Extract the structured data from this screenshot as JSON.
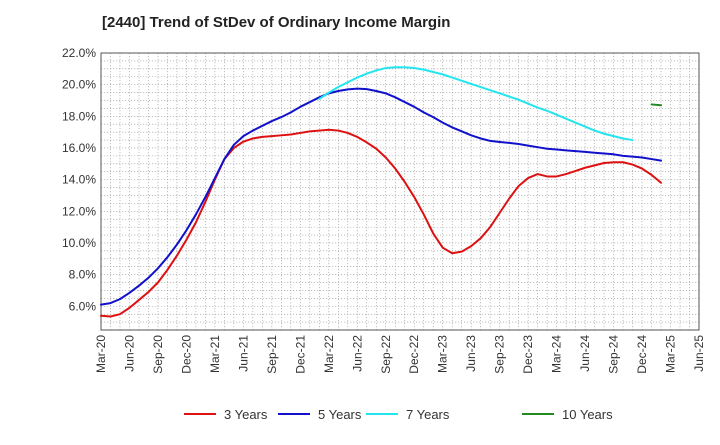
{
  "chart_data": {
    "type": "line",
    "title": "[2440]  Trend of StDev of Ordinary Income Margin",
    "xlabel": "",
    "ylabel": "",
    "ylim": [
      4.5,
      22.0
    ],
    "y_ticks": [
      "22.0%",
      "20.0%",
      "18.0%",
      "16.0%",
      "14.0%",
      "12.0%",
      "10.0%",
      "8.0%",
      "6.0%"
    ],
    "y_tick_values": [
      22,
      20,
      18,
      16,
      14,
      12,
      10,
      8,
      6
    ],
    "x_ticks": [
      "Mar-20",
      "Jun-20",
      "Sep-20",
      "Dec-20",
      "Mar-21",
      "Jun-21",
      "Sep-21",
      "Dec-21",
      "Mar-22",
      "Jun-22",
      "Sep-22",
      "Dec-22",
      "Mar-23",
      "Jun-23",
      "Sep-23",
      "Dec-23",
      "Mar-24",
      "Jun-24",
      "Sep-24",
      "Dec-24",
      "Mar-25",
      "Jun-25"
    ],
    "grid": true,
    "legend_position": "bottom",
    "series": [
      {
        "name": "3 Years",
        "color": "#dd1111",
        "points": [
          [
            "Mar-20",
            5.4
          ],
          [
            "Apr-20",
            5.35
          ],
          [
            "May-20",
            5.5
          ],
          [
            "Jun-20",
            5.9
          ],
          [
            "Jul-20",
            6.4
          ],
          [
            "Aug-20",
            6.9
          ],
          [
            "Sep-20",
            7.5
          ],
          [
            "Oct-20",
            8.3
          ],
          [
            "Nov-20",
            9.2
          ],
          [
            "Dec-20",
            10.2
          ],
          [
            "Jan-21",
            11.3
          ],
          [
            "Feb-21",
            12.6
          ],
          [
            "Mar-21",
            14.0
          ],
          [
            "Apr-21",
            15.3
          ],
          [
            "May-21",
            16.0
          ],
          [
            "Jun-21",
            16.4
          ],
          [
            "Jul-21",
            16.6
          ],
          [
            "Aug-21",
            16.7
          ],
          [
            "Sep-21",
            16.75
          ],
          [
            "Oct-21",
            16.8
          ],
          [
            "Nov-21",
            16.85
          ],
          [
            "Dec-21",
            16.95
          ],
          [
            "Jan-22",
            17.05
          ],
          [
            "Feb-22",
            17.1
          ],
          [
            "Mar-22",
            17.15
          ],
          [
            "Apr-22",
            17.1
          ],
          [
            "May-22",
            16.95
          ],
          [
            "Jun-22",
            16.7
          ],
          [
            "Jul-22",
            16.35
          ],
          [
            "Aug-22",
            15.95
          ],
          [
            "Sep-22",
            15.4
          ],
          [
            "Oct-22",
            14.7
          ],
          [
            "Nov-22",
            13.85
          ],
          [
            "Dec-22",
            12.9
          ],
          [
            "Jan-23",
            11.8
          ],
          [
            "Feb-23",
            10.6
          ],
          [
            "Mar-23",
            9.7
          ],
          [
            "Apr-23",
            9.35
          ],
          [
            "May-23",
            9.45
          ],
          [
            "Jun-23",
            9.8
          ],
          [
            "Jul-23",
            10.3
          ],
          [
            "Aug-23",
            11.0
          ],
          [
            "Sep-23",
            11.9
          ],
          [
            "Oct-23",
            12.8
          ],
          [
            "Nov-23",
            13.6
          ],
          [
            "Dec-23",
            14.1
          ],
          [
            "Jan-24",
            14.35
          ],
          [
            "Feb-24",
            14.2
          ],
          [
            "Mar-24",
            14.2
          ],
          [
            "Apr-24",
            14.35
          ],
          [
            "May-24",
            14.55
          ],
          [
            "Jun-24",
            14.75
          ],
          [
            "Jul-24",
            14.9
          ],
          [
            "Aug-24",
            15.05
          ],
          [
            "Sep-24",
            15.1
          ],
          [
            "Oct-24",
            15.1
          ],
          [
            "Nov-24",
            14.95
          ],
          [
            "Dec-24",
            14.7
          ],
          [
            "Jan-25",
            14.3
          ],
          [
            "Feb-25",
            13.8
          ]
        ]
      },
      {
        "name": "5 Years",
        "color": "#1111cc",
        "points": [
          [
            "Mar-20",
            6.1
          ],
          [
            "Apr-20",
            6.2
          ],
          [
            "May-20",
            6.45
          ],
          [
            "Jun-20",
            6.85
          ],
          [
            "Jul-20",
            7.3
          ],
          [
            "Aug-20",
            7.8
          ],
          [
            "Sep-20",
            8.4
          ],
          [
            "Oct-20",
            9.1
          ],
          [
            "Nov-20",
            9.9
          ],
          [
            "Dec-20",
            10.8
          ],
          [
            "Jan-21",
            11.8
          ],
          [
            "Feb-21",
            12.9
          ],
          [
            "Mar-21",
            14.1
          ],
          [
            "Apr-21",
            15.3
          ],
          [
            "May-21",
            16.2
          ],
          [
            "Jun-21",
            16.75
          ],
          [
            "Jul-21",
            17.1
          ],
          [
            "Aug-21",
            17.4
          ],
          [
            "Sep-21",
            17.7
          ],
          [
            "Oct-21",
            17.95
          ],
          [
            "Nov-21",
            18.25
          ],
          [
            "Dec-21",
            18.6
          ],
          [
            "Jan-22",
            18.9
          ],
          [
            "Feb-22",
            19.2
          ],
          [
            "Mar-22",
            19.45
          ],
          [
            "Apr-22",
            19.6
          ],
          [
            "May-22",
            19.7
          ],
          [
            "Jun-22",
            19.75
          ],
          [
            "Jul-22",
            19.72
          ],
          [
            "Aug-22",
            19.6
          ],
          [
            "Sep-22",
            19.45
          ],
          [
            "Oct-22",
            19.2
          ],
          [
            "Nov-22",
            18.9
          ],
          [
            "Dec-22",
            18.6
          ],
          [
            "Jan-23",
            18.25
          ],
          [
            "Feb-23",
            17.95
          ],
          [
            "Mar-23",
            17.6
          ],
          [
            "Apr-23",
            17.3
          ],
          [
            "May-23",
            17.05
          ],
          [
            "Jun-23",
            16.8
          ],
          [
            "Jul-23",
            16.6
          ],
          [
            "Aug-23",
            16.45
          ],
          [
            "Sep-23",
            16.38
          ],
          [
            "Oct-23",
            16.32
          ],
          [
            "Nov-23",
            16.25
          ],
          [
            "Dec-23",
            16.15
          ],
          [
            "Jan-24",
            16.05
          ],
          [
            "Feb-24",
            15.95
          ],
          [
            "Mar-24",
            15.9
          ],
          [
            "Apr-24",
            15.85
          ],
          [
            "May-24",
            15.8
          ],
          [
            "Jun-24",
            15.75
          ],
          [
            "Jul-24",
            15.7
          ],
          [
            "Aug-24",
            15.65
          ],
          [
            "Sep-24",
            15.6
          ],
          [
            "Oct-24",
            15.5
          ],
          [
            "Nov-24",
            15.45
          ],
          [
            "Dec-24",
            15.4
          ],
          [
            "Jan-25",
            15.3
          ],
          [
            "Feb-25",
            15.2
          ]
        ]
      },
      {
        "name": "7 Years",
        "color": "#22e5ee",
        "points": [
          [
            "Feb-22",
            19.1
          ],
          [
            "Mar-22",
            19.5
          ],
          [
            "Apr-22",
            19.85
          ],
          [
            "May-22",
            20.15
          ],
          [
            "Jun-22",
            20.45
          ],
          [
            "Jul-22",
            20.7
          ],
          [
            "Aug-22",
            20.9
          ],
          [
            "Sep-22",
            21.05
          ],
          [
            "Oct-22",
            21.1
          ],
          [
            "Nov-22",
            21.1
          ],
          [
            "Dec-22",
            21.05
          ],
          [
            "Jan-23",
            20.95
          ],
          [
            "Feb-23",
            20.8
          ],
          [
            "Mar-23",
            20.65
          ],
          [
            "Apr-23",
            20.45
          ],
          [
            "May-23",
            20.25
          ],
          [
            "Jun-23",
            20.05
          ],
          [
            "Jul-23",
            19.85
          ],
          [
            "Aug-23",
            19.65
          ],
          [
            "Sep-23",
            19.45
          ],
          [
            "Oct-23",
            19.25
          ],
          [
            "Nov-23",
            19.05
          ],
          [
            "Dec-23",
            18.8
          ],
          [
            "Jan-24",
            18.55
          ],
          [
            "Feb-24",
            18.35
          ],
          [
            "Mar-24",
            18.1
          ],
          [
            "Apr-24",
            17.85
          ],
          [
            "May-24",
            17.6
          ],
          [
            "Jun-24",
            17.35
          ],
          [
            "Jul-24",
            17.1
          ],
          [
            "Aug-24",
            16.9
          ],
          [
            "Sep-24",
            16.75
          ],
          [
            "Oct-24",
            16.6
          ],
          [
            "Nov-24",
            16.5
          ]
        ]
      },
      {
        "name": "10 Years",
        "color": "#228822",
        "points": [
          [
            "Jan-25",
            18.75
          ],
          [
            "Feb-25",
            18.7
          ]
        ]
      }
    ]
  }
}
